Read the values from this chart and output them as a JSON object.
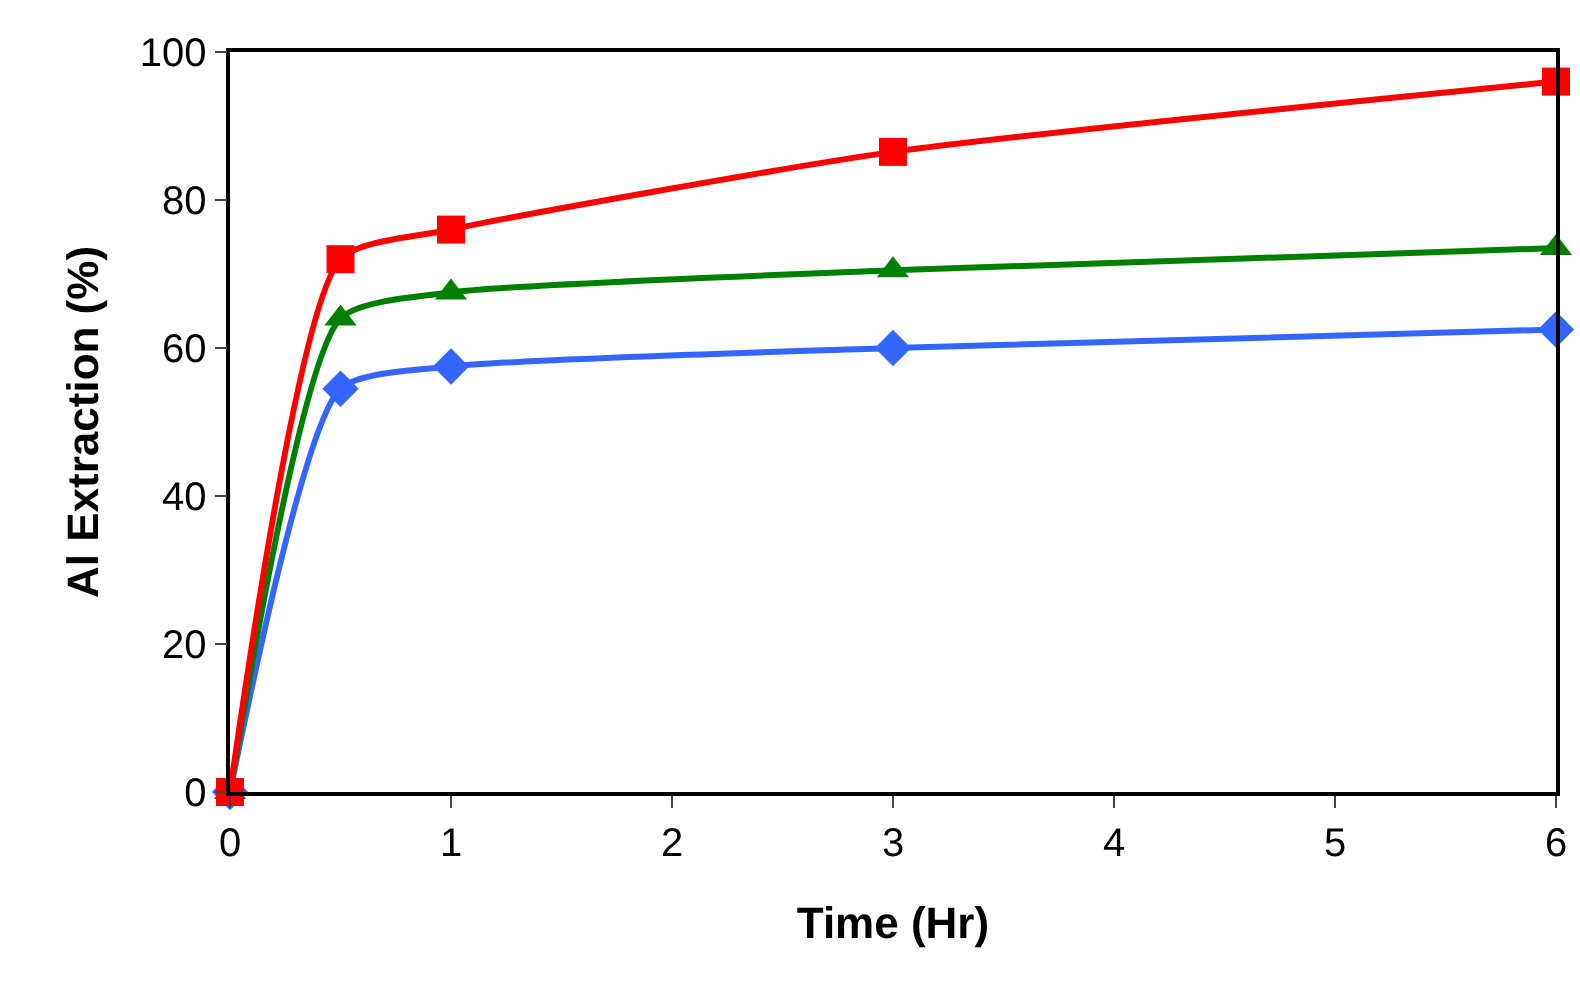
{
  "chart_data": {
    "type": "line",
    "xlabel": "Time (Hr)",
    "ylabel": "Al Extraction (%)",
    "x": [
      0,
      0.5,
      1,
      3,
      6
    ],
    "xlim": [
      0,
      6
    ],
    "xticks": [
      0,
      1,
      2,
      3,
      4,
      5,
      6
    ],
    "ylim": [
      0,
      100
    ],
    "yticks": [
      0,
      20,
      40,
      60,
      80,
      100
    ],
    "series": [
      {
        "color": "#3366ff",
        "marker": "diamond",
        "values": [
          0,
          54.5,
          57.5,
          60,
          62.5
        ]
      },
      {
        "color": "#008000",
        "marker": "triangle",
        "values": [
          0,
          64,
          67.5,
          70.5,
          73.5
        ]
      },
      {
        "color": "#ff0000",
        "marker": "square",
        "values": [
          0,
          72,
          76,
          86.5,
          96
        ]
      }
    ]
  }
}
